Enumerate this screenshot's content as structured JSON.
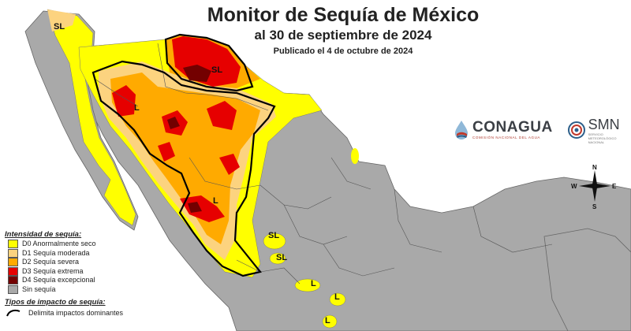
{
  "header": {
    "title": "Monitor de Sequía de México",
    "subtitle": "al 30 de septiembre de 2024",
    "published": "Publicado el 4 de octubre de 2024"
  },
  "logos": {
    "conagua_name": "CONAGUA",
    "conagua_sub": "COMISIÓN NACIONAL DEL AGUA",
    "smn_name": "SMN",
    "smn_sub": "SERVICIO METEOROLÓGICO NACIONAL"
  },
  "compass": {
    "n": "N",
    "s": "S",
    "e": "E",
    "w": "W"
  },
  "legend": {
    "title": "Intensidad de sequía:",
    "items": [
      {
        "label": "D0 Anormalmente seco",
        "color": "#ffff00"
      },
      {
        "label": "D1 Sequía moderada",
        "color": "#fcd37f"
      },
      {
        "label": "D2 Sequía severa",
        "color": "#ffaa00"
      },
      {
        "label": "D3 Sequía extrema",
        "color": "#e60000"
      },
      {
        "label": "D4 Sequía excepcional",
        "color": "#730000"
      },
      {
        "label": "Sin sequía",
        "color": "#a9a9a9"
      }
    ],
    "impact_title": "Tipos de impacto de sequía:",
    "impact_items": [
      {
        "label": "Delimita impactos dominantes"
      }
    ]
  },
  "map_labels": {
    "sl_baja_north": "SL",
    "l_sonora": "L",
    "sl_chihuahua": "SL",
    "l_sinaloa": "L",
    "sl_center": "SL",
    "sl_center2": "SL",
    "l_center": "L",
    "l_center2": "L",
    "l_center3": "L"
  },
  "colors": {
    "land": "#a9a9a9",
    "ocean": "#ffffff",
    "usa": "#ffffff",
    "border": "#555555"
  }
}
